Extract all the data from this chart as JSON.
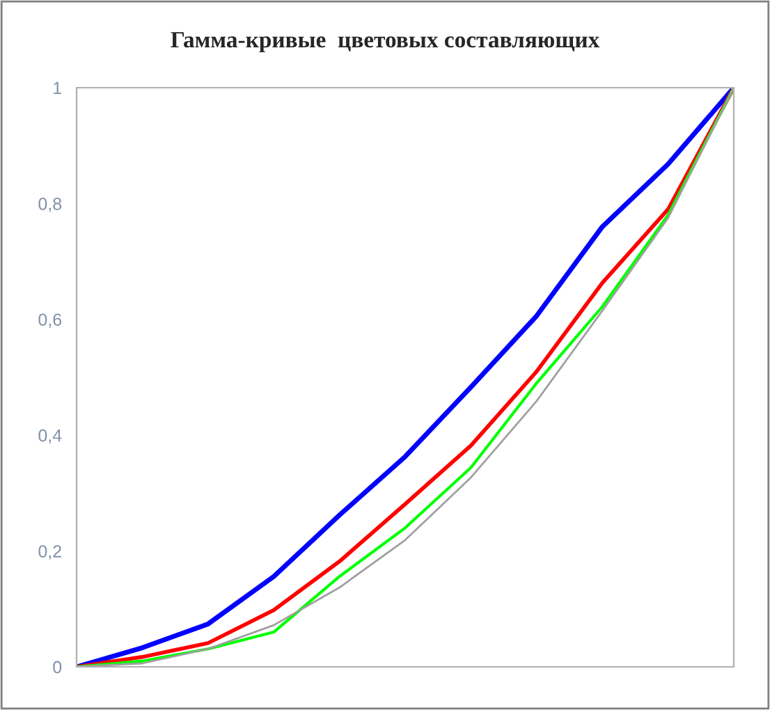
{
  "chart_data": {
    "type": "line",
    "title": "Гамма-кривые  цветовых составляющих",
    "categories": [
      null,
      null,
      null,
      null,
      null,
      null,
      null,
      null,
      null,
      null,
      null
    ],
    "series": [
      {
        "color": "#0000ff",
        "values": [
          0,
          0.033,
          0.074,
          0.156,
          0.262,
          0.363,
          0.483,
          0.606,
          0.76,
          0.868,
          1
        ]
      },
      {
        "color": "#ff0000",
        "values": [
          0,
          0.017,
          0.041,
          0.098,
          0.182,
          0.281,
          0.382,
          0.51,
          0.663,
          0.79,
          1
        ]
      },
      {
        "color": "#00ff00",
        "values": [
          0,
          0.01,
          0.031,
          0.06,
          0.156,
          0.24,
          0.344,
          0.49,
          0.622,
          0.78,
          1
        ]
      },
      {
        "color": "#a0a0a0",
        "values": [
          0,
          0.006,
          0.031,
          0.072,
          0.137,
          0.219,
          0.327,
          0.459,
          0.615,
          0.775,
          1
        ]
      }
    ],
    "ylim": [
      0,
      1
    ],
    "yticks": [
      {
        "value": 0,
        "label": "0"
      },
      {
        "value": 0.2,
        "label": "0,2"
      },
      {
        "value": 0.4,
        "label": "0,4"
      },
      {
        "value": 0.6,
        "label": "0,6"
      },
      {
        "value": 0.8,
        "label": "0,8"
      },
      {
        "value": 1,
        "label": "1"
      }
    ],
    "tick_labels": "y",
    "grid": false,
    "legend": false,
    "marker": "none",
    "line_style": "solid"
  }
}
